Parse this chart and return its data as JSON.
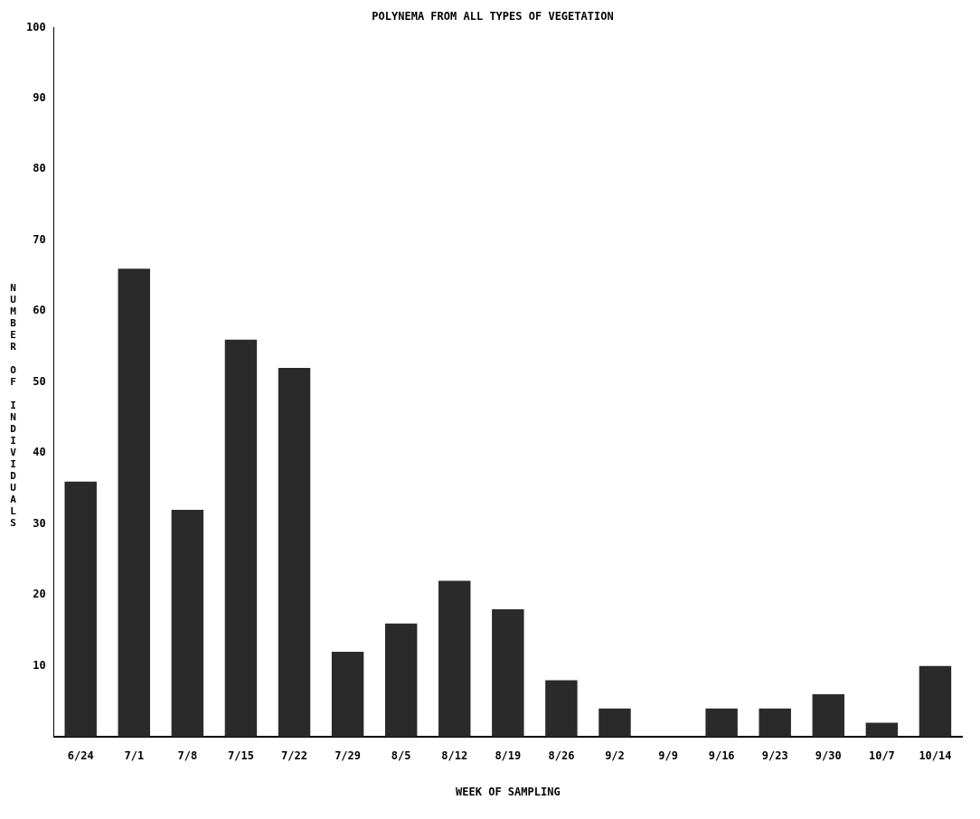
{
  "chart_data": {
    "type": "bar",
    "title": "POLYNEMA FROM ALL TYPES OF VEGETATION",
    "xlabel": "WEEK OF SAMPLING",
    "ylabel": "NUMBER OF INDIVIDUALS",
    "categories": [
      "6/24",
      "7/1",
      "7/8",
      "7/15",
      "7/22",
      "7/29",
      "8/5",
      "8/12",
      "8/19",
      "8/26",
      "9/2",
      "9/9",
      "9/16",
      "9/23",
      "9/30",
      "10/7",
      "10/14"
    ],
    "values": [
      36,
      66,
      32,
      56,
      52,
      12,
      16,
      22,
      18,
      8,
      4,
      0,
      4,
      4,
      6,
      2,
      10
    ],
    "color": "#2a2a2a",
    "ylim": [
      0,
      100
    ],
    "yticks": [
      10,
      20,
      30,
      40,
      50,
      60,
      70,
      80,
      90,
      100
    ],
    "grid": false,
    "legend": false
  }
}
